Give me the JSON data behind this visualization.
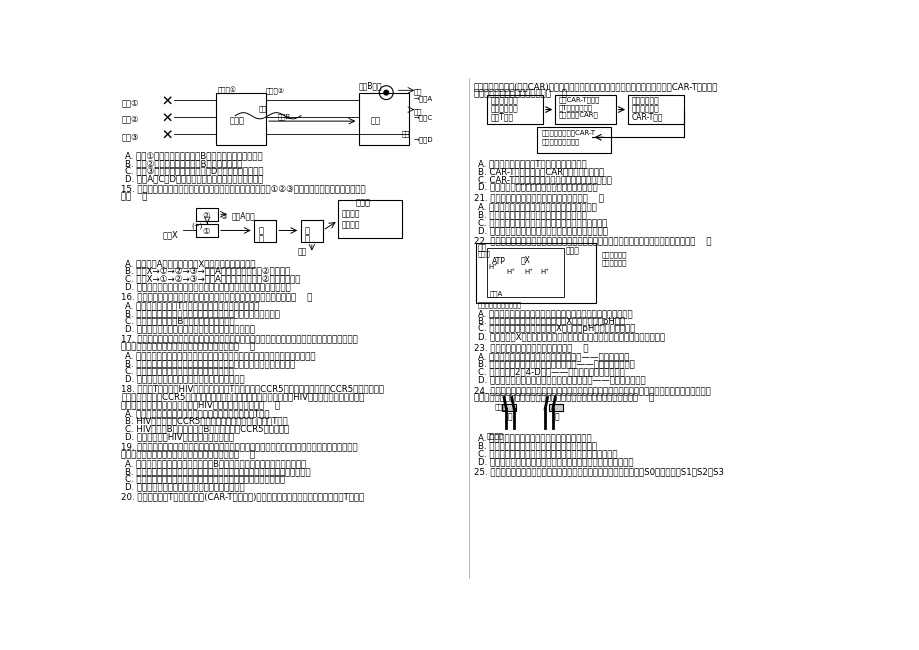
{
  "background_color": "#ffffff",
  "left_q14_lines": [
    "A. 途径①属于直糖调节，胰岛B细胞上有神经递质的受体",
    "B. 途径②属于体温调节，激素B是促甲状腺激素",
    "C. 途径③属于水盐平衡调节，激素D是垂体合成和释放的",
    "D. 激素A、C、D都能定向运输到靶细胞和靶器官起作用"
  ],
  "left_q15_lines": [
    "A. 影响胰岛A细胞分泌的刺激X最可能是血糖含量升高",
    "B. 刺激X→①→②→③→胰岛A细胞是体液调节，②表示垂体",
    "C. 刺激X→①→②→③→胰岛A细胞是神经调节，②表示大脑皮层",
    "D. 靶细胞接受激素刺激后，可促使肝糖原分解、非糖物质转化为葡萄糖"
  ],
  "left_q16_lines": [
    "A. 健康的心态有利于T细胞的增殖分化及细胞因子的产生",
    "B. 健康的心态有利于提高免疫系统识别和清除体内癌变细胞的能力",
    "C. 健康的心态有利于B细胞增殖分化为浆细胞",
    "D. 健康的心态有利于浆细胞增殖分化为大量的记忆细胞"
  ],
  "left_q17_lines": [
    "A. 若在某志愿者血清中检测到了针对胃组织的抗体，则该胃病可能属于自身免疫病",
    "B. 可通过检门蒂融杆菌的杀肠作用来预防由幽门蒂融杆菌感染引起的胃病",
    "C. 把好「病从口入」关是预防胃病的有效途径",
    "D. 胃酸对幽门蒂融杆菌的杀伤作用属于第二道防线"
  ],
  "left_q18_lines": [
    "A. 捐献者的造血干细胞可以通过增殖与分化产生辅助性T细胞",
    "B. HIV可能通过与CCR5蛋白结合，特异性地侵染辅助性T细胞",
    "C. HIV不侵染B细胞的原因是B细胞缺乏编码CCR5蛋白的基因",
    "D. 捐献者若感染HIV，可通过抗体清除病毒"
  ],
  "left_q19_lines": [
    "A. 蛇毒素是细胞因子，刺激马体内的B细胞增殖分化，进而促进产生抗蛇毒素",
    "B. 蛇毒素反复多次注射到马的体内，使马的体内产生较多的记忆细胞和抗蛇毒素",
    "C. 蛇毒素能与抗蛇毒素特异性结合形成沉淠，阻止抗蛇毒素损伤细胞",
    "D. 蛇毒素注射到马的体内，主要使马产生细胞免疫"
  ],
  "right_q20_lines": [
    "A. 特异性免疫过程中，T细胞只参与细胞免疫",
    "B. CAR-T细胞可以通过CAR识别相关癌变细胞",
    "C. CAR-T细胞疗法的基本原理是利用药物清除癌细胞",
    "D. 免疫系统清除体内癌变细胞的过程属于细胞环死"
  ],
  "right_q21_lines": [
    "A. 植物激素是植物体内具有调节功能的微量无机物",
    "B. 植物的向光性说明生长激素能促进植物生长",
    "C. 在缺氧环境中，植物体内生长素的运输速率不受影响",
    "D. 光照、温度等环境因素的变化会影响植物激素的合成"
  ],
  "right_q22_lines": [
    "A. 生长素与细胞膜上的受体结合过程体现了细胞膜的信息交流功能",
    "B. 当生长素浓度由低升至最适时，醂X所处环境溶液pH下降",
    "C. 用单侧光照射胚芽鞘尖端，醂X所处溶液pH向光侧比背光侧低",
    "D. 被激活的醂X催化纤维素分子间的多糖链断裂，使细胞壁松散后细胞吸水伸长"
  ],
  "right_q23_lines": [
    "A. 播种前用一定浓度的赤霊素溶液浸泡种子——促进种子萌发",
    "B. 用适当浓度的生长素处理未成熟的果实——可以获得无子果实",
    "C. 一定浓度的2，4-D溶液——可以除去田间单子叶杂草",
    "D. 对成熟期植物施用一定浓度的细胞分裂素溶液——加速叶片的衰老"
  ],
  "right_q24_lines": [
    "A. 重力的作用导致琦脂块中的生长素含量低于乙",
    "B. 胚芽鞘放置琦脂块乙的一侧细胞伸长比另一侧快",
    "C. 琦脂块甲中的生长素含量高，对胚芽鞘的生长有抑制作用",
    "D. 将琦脂块放在去除尖端的胚芽鞘顶端后，有无光照对结果无影响"
  ]
}
